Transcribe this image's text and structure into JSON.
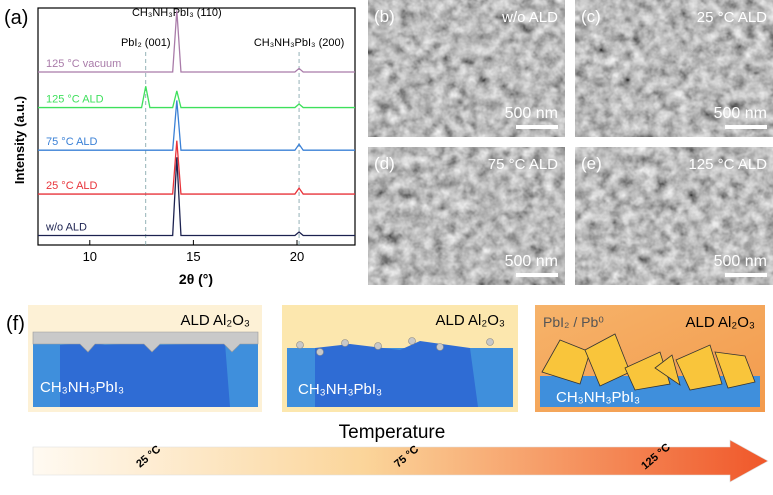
{
  "chart_data": {
    "type": "line",
    "panel_label": "(a)",
    "xlabel": "2θ (°)",
    "ylabel": "Intensity (a.u.)",
    "x": [
      7.5,
      12.5,
      12.7,
      12.9,
      14.0,
      14.2,
      14.4,
      19.9,
      20.1,
      20.3,
      22.8
    ],
    "xlim": [
      7.5,
      22.8
    ],
    "xticks": [
      10,
      15,
      20
    ],
    "ylim": [
      0,
      100
    ],
    "series": [
      {
        "name": "w/o ALD",
        "color": "#1c2250",
        "values": [
          4,
          4,
          4,
          4,
          4,
          37,
          4,
          4,
          5.5,
          4,
          4
        ]
      },
      {
        "name": "25 °C ALD",
        "color": "#e8333a",
        "values": [
          21.5,
          21.5,
          21.5,
          21.5,
          21.5,
          44,
          21.5,
          21.5,
          24,
          21.5,
          21.5
        ]
      },
      {
        "name": "75 °C ALD",
        "color": "#3a80d6",
        "values": [
          40,
          40,
          40,
          40,
          40,
          61,
          40,
          40,
          42.5,
          40,
          40
        ]
      },
      {
        "name": "125 °C ALD",
        "color": "#3ee05c",
        "values": [
          58,
          58,
          67,
          58,
          58,
          65,
          58,
          58,
          59.5,
          58,
          58
        ]
      },
      {
        "name": "125 °C vacuum",
        "color": "#a97ba9",
        "values": [
          73,
          73,
          73,
          73,
          73,
          99,
          73,
          73,
          74.5,
          73,
          73
        ]
      }
    ],
    "annotations": [
      {
        "text": "PbI₂ (001)",
        "x": 12.7,
        "dashed": true
      },
      {
        "text": "CH₃NH₃PbI₃ (110)",
        "x": 14.2,
        "dashed": false
      },
      {
        "text": "CH₃NH₃PbI₃ (200)",
        "x": 20.1,
        "dashed": true
      }
    ]
  },
  "sem_panels": [
    {
      "label": "(b)",
      "condition": "w/o ALD",
      "scale": "500 nm"
    },
    {
      "label": "(c)",
      "condition": "25 °C ALD",
      "scale": "500 nm"
    },
    {
      "label": "(d)",
      "condition": "75 °C ALD",
      "scale": "500 nm"
    },
    {
      "label": "(e)",
      "condition": "125 °C ALD",
      "scale": "500 nm"
    }
  ],
  "schematic": {
    "label": "(f)",
    "boxes": [
      {
        "coating": "ALD Al₂O₃",
        "film": "CH₃NH₃PbI₃"
      },
      {
        "coating": "ALD Al₂O₃",
        "film": "CH₃NH₃PbI₃"
      },
      {
        "coating": "ALD Al₂O₃",
        "film": "CH₃NH₃PbI₃",
        "product": "PbI₂ / Pb⁰"
      }
    ],
    "axis_title": "Temperature",
    "arrow_labels": [
      "25 °C",
      "75 °C",
      "125 °C"
    ]
  }
}
